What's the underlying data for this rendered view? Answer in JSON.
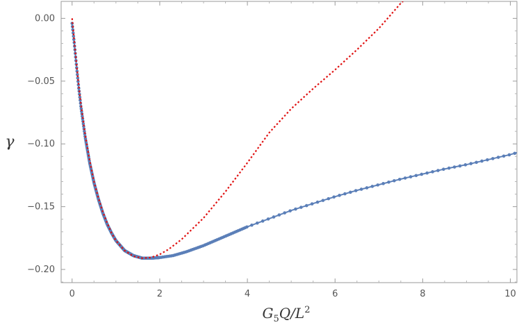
{
  "chart_data": {
    "type": "scatter",
    "title": "",
    "xlabel": "G_5Q/L^2",
    "ylabel": "γ",
    "xlim": [
      -0.25,
      10.15
    ],
    "ylim": [
      -0.2105,
      0.0135
    ],
    "grid": false,
    "x_ticks": [
      0,
      2,
      4,
      6,
      8,
      10
    ],
    "x_tick_labels": [
      "0",
      "2",
      "4",
      "6",
      "8",
      "10"
    ],
    "y_ticks": [
      0.0,
      -0.05,
      -0.1,
      -0.15,
      -0.2
    ],
    "y_tick_labels": [
      "0.00",
      "−0.05",
      "−0.10",
      "−0.15",
      "−0.20"
    ],
    "series": [
      {
        "style": "points-joined",
        "color": "#5b7fb8",
        "points": [
          [
            0.0,
            -0.004
          ],
          [
            0.05,
            -0.02
          ],
          [
            0.1,
            -0.038
          ],
          [
            0.15,
            -0.055
          ],
          [
            0.2,
            -0.07
          ],
          [
            0.3,
            -0.095
          ],
          [
            0.4,
            -0.115
          ],
          [
            0.5,
            -0.131
          ],
          [
            0.6,
            -0.144
          ],
          [
            0.7,
            -0.155
          ],
          [
            0.8,
            -0.164
          ],
          [
            0.9,
            -0.171
          ],
          [
            1.0,
            -0.177
          ],
          [
            1.2,
            -0.185
          ],
          [
            1.4,
            -0.189
          ],
          [
            1.6,
            -0.191
          ],
          [
            1.8,
            -0.191
          ],
          [
            2.0,
            -0.1905
          ],
          [
            2.3,
            -0.189
          ],
          [
            2.6,
            -0.186
          ],
          [
            3.0,
            -0.181
          ],
          [
            3.5,
            -0.1735
          ],
          [
            4.0,
            -0.166
          ],
          [
            4.5,
            -0.1595
          ],
          [
            5.0,
            -0.153
          ],
          [
            5.5,
            -0.1475
          ],
          [
            6.0,
            -0.142
          ],
          [
            6.5,
            -0.137
          ],
          [
            7.0,
            -0.1325
          ],
          [
            7.5,
            -0.128
          ],
          [
            8.0,
            -0.124
          ],
          [
            8.5,
            -0.12
          ],
          [
            9.0,
            -0.1165
          ],
          [
            9.5,
            -0.1125
          ],
          [
            10.0,
            -0.1085
          ],
          [
            10.15,
            -0.107
          ]
        ]
      },
      {
        "style": "dotted-line",
        "color": "#e01010",
        "points": [
          [
            0.0,
            0.0
          ],
          [
            0.05,
            -0.018
          ],
          [
            0.1,
            -0.036
          ],
          [
            0.15,
            -0.053
          ],
          [
            0.2,
            -0.068
          ],
          [
            0.3,
            -0.093
          ],
          [
            0.4,
            -0.113
          ],
          [
            0.5,
            -0.13
          ],
          [
            0.6,
            -0.143
          ],
          [
            0.7,
            -0.154
          ],
          [
            0.8,
            -0.163
          ],
          [
            0.9,
            -0.171
          ],
          [
            1.0,
            -0.177
          ],
          [
            1.2,
            -0.185
          ],
          [
            1.4,
            -0.1895
          ],
          [
            1.6,
            -0.191
          ],
          [
            1.8,
            -0.1905
          ],
          [
            2.0,
            -0.188
          ],
          [
            2.2,
            -0.184
          ],
          [
            2.5,
            -0.176
          ],
          [
            3.0,
            -0.159
          ],
          [
            3.5,
            -0.138
          ],
          [
            4.0,
            -0.115
          ],
          [
            4.5,
            -0.091
          ],
          [
            5.0,
            -0.072
          ],
          [
            5.5,
            -0.056
          ],
          [
            6.0,
            -0.041
          ],
          [
            6.5,
            -0.025
          ],
          [
            7.0,
            -0.008
          ],
          [
            7.5,
            0.012
          ],
          [
            7.55,
            0.0135
          ]
        ]
      }
    ]
  }
}
